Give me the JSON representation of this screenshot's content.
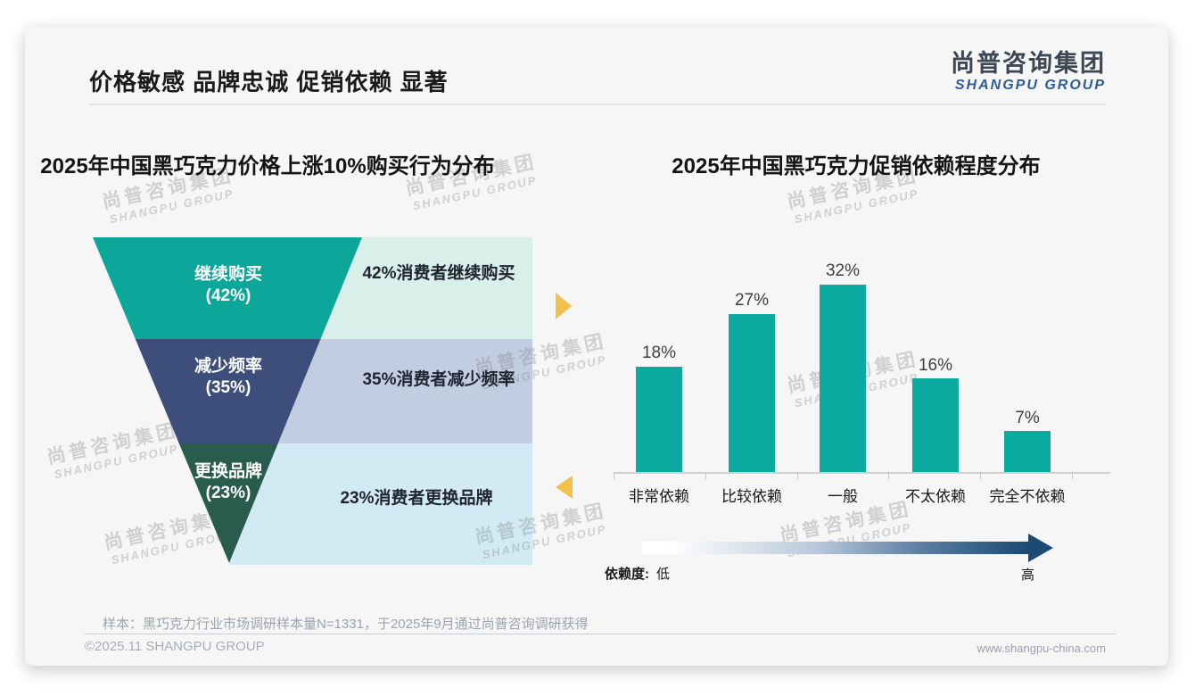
{
  "slide": {
    "title": "价格敏感 品牌忠诚 促销依赖 显著",
    "logo": {
      "cn": "尚普咨询集团",
      "en": "SHANGPU GROUP"
    },
    "watermark": {
      "cn": "尚普咨询集团",
      "en": "SHANGPU GROUP"
    },
    "footer": {
      "note": "样本：黑巧克力行业市场调研样本量N=1331，于2025年9月通过尚普咨询调研获得",
      "copyright": "©2025.11 SHANGPU GROUP",
      "website": "www.shangpu-china.com"
    }
  },
  "colors": {
    "funnel_teal": "#0CA79A",
    "funnel_navy": "#3E4E7B",
    "funnel_green": "#2A5C4D",
    "band_mint": "#D9EFEA",
    "band_lavender": "#C3CDE1",
    "band_cyan": "#D2EAF3",
    "bar_teal": "#0BABA2",
    "arrow_yellow": "#F2C14B",
    "gradient_dark": "#1B4A73",
    "logo_blue": "#2D5D98"
  },
  "chart_data": [
    {
      "type": "funnel",
      "title": "2025年中国黑巧克力价格上涨10%购买行为分布",
      "categories": [
        "继续购买",
        "减少频率",
        "更换品牌"
      ],
      "values": [
        42,
        35,
        23
      ],
      "unit": "%",
      "pct_labels": [
        "(42%)",
        "(35%)",
        "(23%)"
      ],
      "annotations": [
        "42%消费者继续购买",
        "35%消费者减少频率",
        "23%消费者更换品牌"
      ]
    },
    {
      "type": "bar",
      "title": "2025年中国黑巧克力促销依赖程度分布",
      "categories": [
        "非常依赖",
        "比较依赖",
        "一般",
        "不太依赖",
        "完全不依赖"
      ],
      "values": [
        18,
        27,
        32,
        16,
        7
      ],
      "unit": "%",
      "value_labels": [
        "18%",
        "27%",
        "32%",
        "16%",
        "7%"
      ],
      "ylim": [
        0,
        35
      ],
      "grid": false,
      "legend": null,
      "axis_note": {
        "label": "依赖度:",
        "low": "低",
        "high": "高"
      }
    }
  ]
}
